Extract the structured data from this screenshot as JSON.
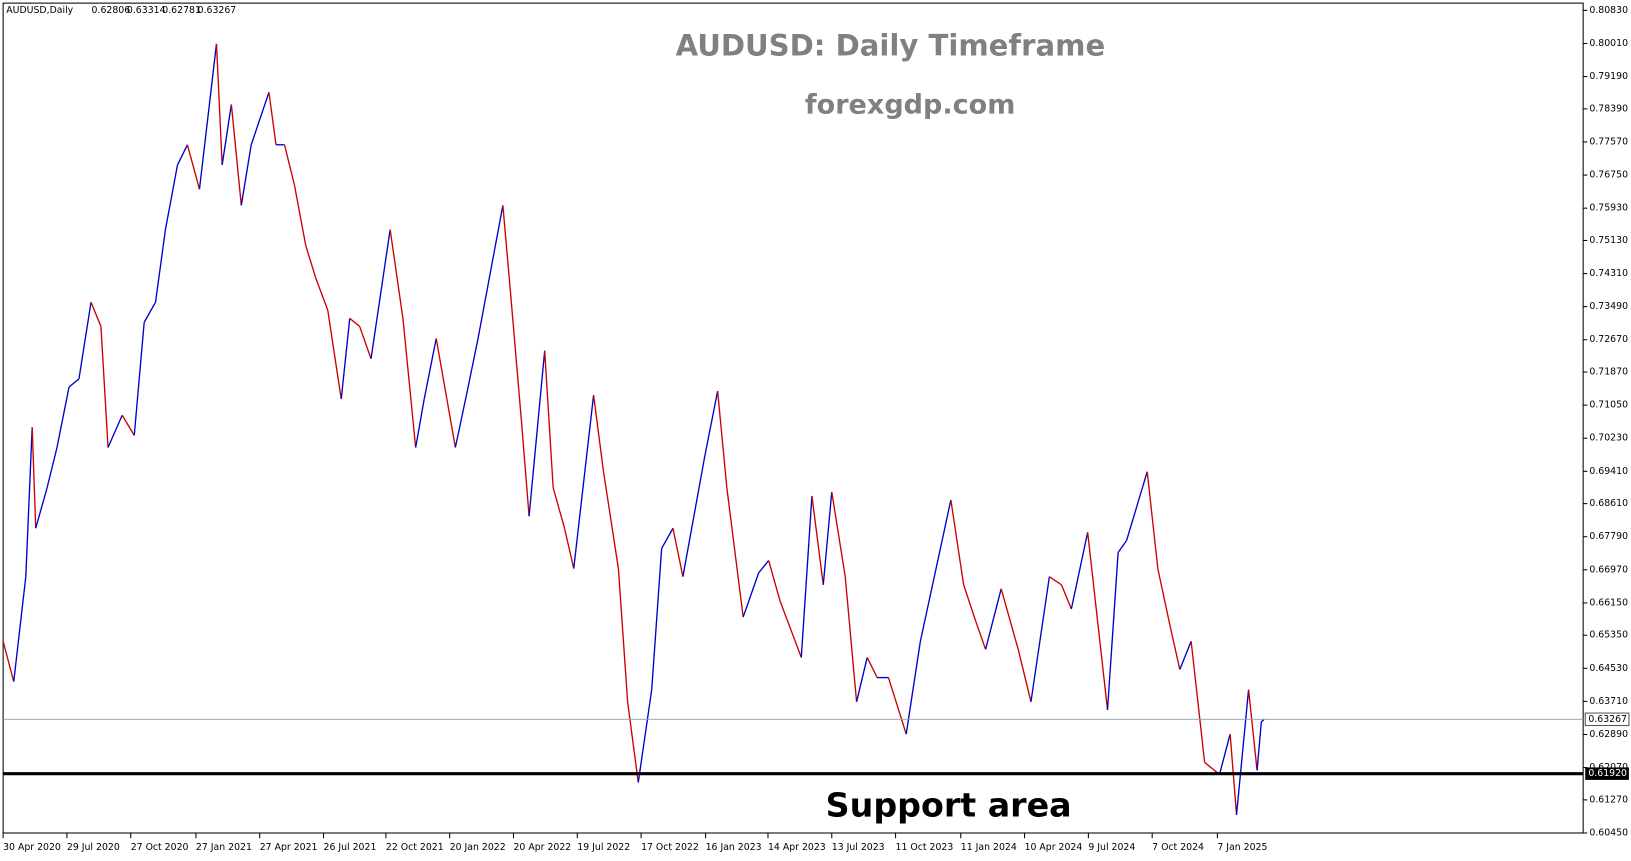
{
  "chart_data": {
    "type": "line",
    "header": {
      "symbol": "AUDUSD,Daily",
      "ohlc": [
        "0.62806",
        "0.63314",
        "0.62781",
        "0.63267"
      ]
    },
    "title": "AUDUSD: Daily Timeframe",
    "subtitle": "forexgdp.com",
    "annotation": "Support area",
    "up_color": "#0000cc",
    "down_color": "#cc0000",
    "x": [
      "2020-04-30",
      "2020-05-15",
      "2020-06-01",
      "2020-06-10",
      "2020-06-15",
      "2020-07-01",
      "2020-07-15",
      "2020-08-01",
      "2020-08-15",
      "2020-09-01",
      "2020-09-15",
      "2020-09-25",
      "2020-10-15",
      "2020-11-01",
      "2020-11-15",
      "2020-12-01",
      "2020-12-15",
      "2021-01-01",
      "2021-01-15",
      "2021-02-01",
      "2021-02-25",
      "2021-03-05",
      "2021-03-18",
      "2021-04-01",
      "2021-04-15",
      "2021-05-10",
      "2021-05-20",
      "2021-06-01",
      "2021-06-15",
      "2021-07-01",
      "2021-07-15",
      "2021-08-01",
      "2021-08-20",
      "2021-09-01",
      "2021-09-15",
      "2021-10-01",
      "2021-10-28",
      "2021-11-15",
      "2021-12-03",
      "2021-12-15",
      "2022-01-01",
      "2022-01-28",
      "2022-02-15",
      "2022-03-01",
      "2022-04-05",
      "2022-04-15",
      "2022-05-01",
      "2022-05-12",
      "2022-06-03",
      "2022-06-15",
      "2022-07-01",
      "2022-07-14",
      "2022-08-11",
      "2022-08-25",
      "2022-09-15",
      "2022-09-28",
      "2022-10-13",
      "2022-11-01",
      "2022-11-15",
      "2022-12-01",
      "2022-12-15",
      "2023-01-15",
      "2023-02-02",
      "2023-02-15",
      "2023-03-10",
      "2023-04-01",
      "2023-04-15",
      "2023-05-01",
      "2023-05-31",
      "2023-06-15",
      "2023-07-01",
      "2023-07-13",
      "2023-08-01",
      "2023-08-17",
      "2023-09-01",
      "2023-09-15",
      "2023-10-01",
      "2023-10-26",
      "2023-11-15",
      "2023-12-28",
      "2024-01-15",
      "2024-02-01",
      "2024-02-15",
      "2024-03-08",
      "2024-04-01",
      "2024-04-19",
      "2024-05-15",
      "2024-06-01",
      "2024-06-15",
      "2024-07-08",
      "2024-08-05",
      "2024-08-20",
      "2024-09-01",
      "2024-09-30",
      "2024-10-15",
      "2024-11-01",
      "2024-11-15",
      "2024-12-01",
      "2024-12-20",
      "2025-01-10",
      "2025-01-25",
      "2025-02-03",
      "2025-02-20",
      "2025-03-04",
      "2025-03-10",
      "2025-03-14"
    ],
    "values": [
      0.652,
      0.642,
      0.668,
      0.705,
      0.68,
      0.69,
      0.7,
      0.715,
      0.717,
      0.736,
      0.73,
      0.7,
      0.708,
      0.703,
      0.731,
      0.736,
      0.754,
      0.77,
      0.775,
      0.764,
      0.8,
      0.77,
      0.785,
      0.76,
      0.775,
      0.788,
      0.775,
      0.775,
      0.765,
      0.75,
      0.742,
      0.734,
      0.712,
      0.732,
      0.73,
      0.722,
      0.754,
      0.732,
      0.7,
      0.712,
      0.727,
      0.7,
      0.715,
      0.727,
      0.76,
      0.74,
      0.707,
      0.683,
      0.724,
      0.69,
      0.68,
      0.67,
      0.713,
      0.694,
      0.67,
      0.637,
      0.617,
      0.64,
      0.675,
      0.68,
      0.668,
      0.698,
      0.714,
      0.69,
      0.658,
      0.669,
      0.672,
      0.662,
      0.648,
      0.688,
      0.666,
      0.689,
      0.668,
      0.637,
      0.648,
      0.643,
      0.643,
      0.629,
      0.652,
      0.687,
      0.666,
      0.657,
      0.65,
      0.665,
      0.65,
      0.637,
      0.668,
      0.666,
      0.66,
      0.679,
      0.635,
      0.674,
      0.677,
      0.694,
      0.67,
      0.656,
      0.645,
      0.652,
      0.622,
      0.619,
      0.629,
      0.609,
      0.64,
      0.62,
      0.632,
      0.63267
    ],
    "xlim": [
      "2020-04-30",
      "2026-06-07"
    ],
    "xticks": [
      {
        "value": "2020-04-30",
        "label": "30 Apr 2020"
      },
      {
        "value": "2020-07-29",
        "label": "29 Jul 2020"
      },
      {
        "value": "2020-10-27",
        "label": "27 Oct 2020"
      },
      {
        "value": "2021-01-27",
        "label": "27 Jan 2021"
      },
      {
        "value": "2021-04-27",
        "label": "27 Apr 2021"
      },
      {
        "value": "2021-07-26",
        "label": "26 Jul 2021"
      },
      {
        "value": "2021-10-22",
        "label": "22 Oct 2021"
      },
      {
        "value": "2022-01-20",
        "label": "20 Jan 2022"
      },
      {
        "value": "2022-04-20",
        "label": "20 Apr 2022"
      },
      {
        "value": "2022-07-19",
        "label": "19 Jul 2022"
      },
      {
        "value": "2022-10-17",
        "label": "17 Oct 2022"
      },
      {
        "value": "2023-01-16",
        "label": "16 Jan 2023"
      },
      {
        "value": "2023-04-14",
        "label": "14 Apr 2023"
      },
      {
        "value": "2023-07-13",
        "label": "13 Jul 2023"
      },
      {
        "value": "2023-10-11",
        "label": "11 Oct 2023"
      },
      {
        "value": "2024-01-11",
        "label": "11 Jan 2024"
      },
      {
        "value": "2024-04-10",
        "label": "10 Apr 2024"
      },
      {
        "value": "2024-07-09",
        "label": "9 Jul 2024"
      },
      {
        "value": "2024-10-07",
        "label": "7 Oct 2024"
      },
      {
        "value": "2025-01-07",
        "label": "7 Jan 2025"
      }
    ],
    "ylim": [
      0.6045,
      0.8083
    ],
    "yticks": [
      {
        "value": 0.8083,
        "label": "0.80830"
      },
      {
        "value": 0.8001,
        "label": "0.80010"
      },
      {
        "value": 0.7919,
        "label": "0.79190"
      },
      {
        "value": 0.7839,
        "label": "0.78390"
      },
      {
        "value": 0.7757,
        "label": "0.77570"
      },
      {
        "value": 0.7675,
        "label": "0.76750"
      },
      {
        "value": 0.7593,
        "label": "0.75930"
      },
      {
        "value": 0.7513,
        "label": "0.75130"
      },
      {
        "value": 0.7431,
        "label": "0.74310"
      },
      {
        "value": 0.7349,
        "label": "0.73490"
      },
      {
        "value": 0.7267,
        "label": "0.72670"
      },
      {
        "value": 0.7187,
        "label": "0.71870"
      },
      {
        "value": 0.7105,
        "label": "0.71050"
      },
      {
        "value": 0.7023,
        "label": "0.70230"
      },
      {
        "value": 0.6941,
        "label": "0.69410"
      },
      {
        "value": 0.6861,
        "label": "0.68610"
      },
      {
        "value": 0.6779,
        "label": "0.67790"
      },
      {
        "value": 0.6697,
        "label": "0.66970"
      },
      {
        "value": 0.6615,
        "label": "0.66150"
      },
      {
        "value": 0.6535,
        "label": "0.65350"
      },
      {
        "value": 0.6453,
        "label": "0.64530"
      },
      {
        "value": 0.6371,
        "label": "0.63710"
      },
      {
        "value": 0.6289,
        "label": "0.62890"
      },
      {
        "value": 0.6207,
        "label": "0.62070"
      },
      {
        "value": 0.6127,
        "label": "0.61270"
      },
      {
        "value": 0.6045,
        "label": "0.60450"
      }
    ],
    "price_line": {
      "value": 0.63267,
      "label": "0.63267"
    },
    "support_line": {
      "value": 0.6192,
      "label": "0.61920"
    }
  }
}
